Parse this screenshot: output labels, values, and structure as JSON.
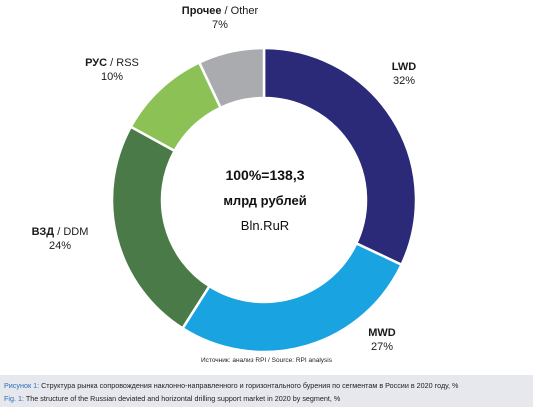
{
  "chart_data": {
    "type": "pie",
    "donut": true,
    "slices": [
      {
        "cat_ru": "",
        "cat_en": "LWD",
        "value": 32,
        "color": "#2b2a78",
        "label": "32%"
      },
      {
        "cat_ru": "",
        "cat_en": "MWD",
        "value": 27,
        "color": "#1aa3e1",
        "label": "27%"
      },
      {
        "cat_ru": "ВЗД",
        "cat_en": "DDM",
        "value": 24,
        "color": "#4a7a47",
        "label": "24%"
      },
      {
        "cat_ru": "РУС",
        "cat_en": "RSS",
        "value": 10,
        "color": "#8cc155",
        "label": "10%"
      },
      {
        "cat_ru": "Прочее",
        "cat_en": "Other",
        "value": 7,
        "color": "#a9abae",
        "label": "7%"
      }
    ],
    "center": {
      "total": "100%=138,3",
      "unit": "млрд рублей",
      "brand": "Bln.RuR"
    }
  },
  "source": {
    "prefix": "Источник: анализ RPI / Source: RPI analysis"
  },
  "caption": {
    "ru_lead": "Рисунок 1:",
    "ru_text": " Структура рынка сопровождения наклонно-направленного и горизонтального бурения по сегментам в России в 2020 году, %",
    "en_lead": "Fig. 1:",
    "en_text": " The structure of the Russian deviated and horizontal drilling support market in 2020 by segment, %"
  }
}
